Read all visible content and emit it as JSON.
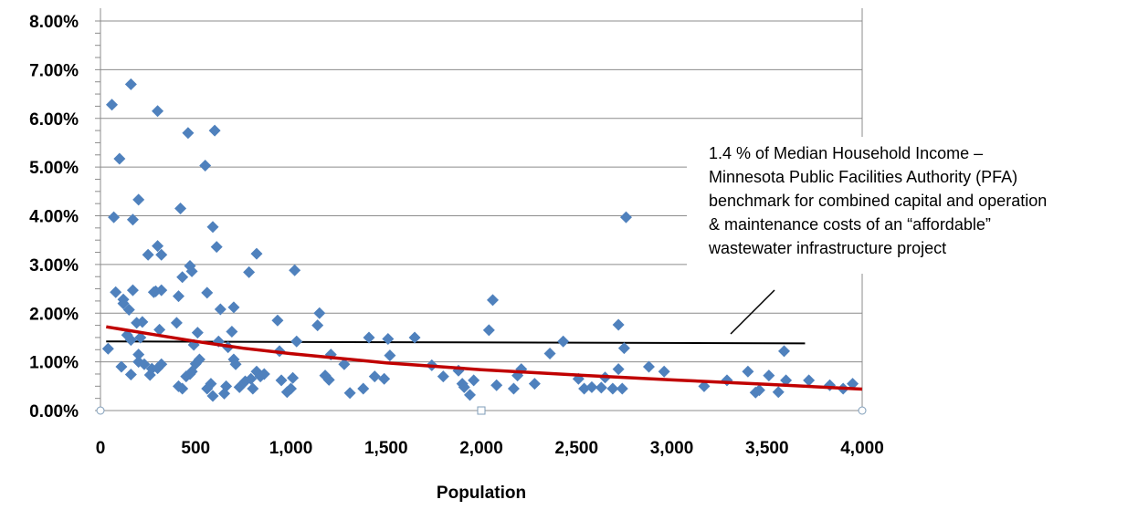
{
  "chart_data": {
    "type": "scatter",
    "xlabel": "Population",
    "ylabel": "",
    "xlim": [
      0,
      4000
    ],
    "ylim": [
      0,
      8
    ],
    "x_ticks": [
      0,
      500,
      1000,
      1500,
      2000,
      2500,
      3000,
      3500,
      4000
    ],
    "x_tick_labels": [
      "0",
      "500",
      "1,000",
      "1,500",
      "2,000",
      "2,500",
      "3,000",
      "3,500",
      "4,000"
    ],
    "y_ticks": [
      0,
      1,
      2,
      3,
      4,
      5,
      6,
      7,
      8
    ],
    "y_tick_labels": [
      "0.00%",
      "1.00%",
      "2.00%",
      "3.00%",
      "4.00%",
      "5.00%",
      "6.00%",
      "7.00%",
      "8.00%"
    ],
    "grid": "horizontal",
    "annotation": [
      "1.4 % of Median Household Income –",
      "Minnesota Public Facilities Authority (PFA)",
      "benchmark for combined capital and operation",
      "& maintenance costs of an “affordable”",
      "wastewater infrastructure project"
    ],
    "benchmark": {
      "x": [
        30,
        3700
      ],
      "y": [
        1.42,
        1.38
      ]
    },
    "trendline": {
      "x": [
        30,
        250,
        500,
        750,
        1000,
        1500,
        2000,
        2500,
        3000,
        3500,
        4000
      ],
      "y": [
        1.72,
        1.58,
        1.42,
        1.28,
        1.17,
        0.98,
        0.84,
        0.73,
        0.63,
        0.54,
        0.44
      ]
    },
    "points": [
      [
        60,
        6.28
      ],
      [
        160,
        6.7
      ],
      [
        300,
        6.15
      ],
      [
        100,
        5.17
      ],
      [
        70,
        3.97
      ],
      [
        170,
        3.92
      ],
      [
        200,
        4.33
      ],
      [
        250,
        3.2
      ],
      [
        300,
        3.38
      ],
      [
        320,
        3.2
      ],
      [
        460,
        5.7
      ],
      [
        600,
        5.75
      ],
      [
        550,
        5.03
      ],
      [
        420,
        4.15
      ],
      [
        590,
        3.77
      ],
      [
        610,
        3.36
      ],
      [
        470,
        2.97
      ],
      [
        430,
        2.74
      ],
      [
        480,
        2.86
      ],
      [
        410,
        2.35
      ],
      [
        560,
        2.42
      ],
      [
        630,
        2.08
      ],
      [
        700,
        2.12
      ],
      [
        780,
        2.84
      ],
      [
        820,
        3.22
      ],
      [
        1020,
        2.88
      ],
      [
        80,
        2.43
      ],
      [
        120,
        2.28
      ],
      [
        150,
        2.07
      ],
      [
        170,
        2.47
      ],
      [
        290,
        2.45
      ],
      [
        320,
        2.47
      ],
      [
        280,
        2.43
      ],
      [
        140,
        1.55
      ],
      [
        160,
        1.45
      ],
      [
        190,
        1.8
      ],
      [
        220,
        1.82
      ],
      [
        210,
        1.5
      ],
      [
        120,
        2.2
      ],
      [
        310,
        1.66
      ],
      [
        40,
        1.27
      ],
      [
        110,
        0.9
      ],
      [
        160,
        0.74
      ],
      [
        200,
        1.15
      ],
      [
        200,
        1.0
      ],
      [
        230,
        0.95
      ],
      [
        260,
        0.73
      ],
      [
        270,
        0.86
      ],
      [
        300,
        0.87
      ],
      [
        320,
        0.95
      ],
      [
        400,
        1.8
      ],
      [
        410,
        0.5
      ],
      [
        430,
        0.45
      ],
      [
        450,
        0.7
      ],
      [
        470,
        0.75
      ],
      [
        480,
        0.8
      ],
      [
        500,
        0.96
      ],
      [
        490,
        1.35
      ],
      [
        510,
        1.6
      ],
      [
        520,
        1.05
      ],
      [
        560,
        0.45
      ],
      [
        580,
        0.55
      ],
      [
        590,
        0.3
      ],
      [
        620,
        1.42
      ],
      [
        650,
        0.35
      ],
      [
        660,
        0.5
      ],
      [
        670,
        1.3
      ],
      [
        690,
        1.62
      ],
      [
        700,
        1.05
      ],
      [
        710,
        0.95
      ],
      [
        730,
        0.48
      ],
      [
        760,
        0.6
      ],
      [
        790,
        0.65
      ],
      [
        800,
        0.45
      ],
      [
        820,
        0.8
      ],
      [
        840,
        0.7
      ],
      [
        860,
        0.75
      ],
      [
        930,
        1.85
      ],
      [
        940,
        1.22
      ],
      [
        950,
        0.62
      ],
      [
        980,
        0.38
      ],
      [
        1000,
        0.45
      ],
      [
        1010,
        0.67
      ],
      [
        1030,
        1.42
      ],
      [
        1140,
        1.75
      ],
      [
        1150,
        2.0
      ],
      [
        1180,
        0.72
      ],
      [
        1200,
        0.63
      ],
      [
        1210,
        1.15
      ],
      [
        1280,
        0.95
      ],
      [
        1310,
        0.36
      ],
      [
        1380,
        0.45
      ],
      [
        1410,
        1.5
      ],
      [
        1440,
        0.7
      ],
      [
        1490,
        0.65
      ],
      [
        1510,
        1.47
      ],
      [
        1520,
        1.13
      ],
      [
        1650,
        1.5
      ],
      [
        1740,
        0.93
      ],
      [
        1800,
        0.7
      ],
      [
        1880,
        0.82
      ],
      [
        1900,
        0.55
      ],
      [
        1910,
        0.48
      ],
      [
        1940,
        0.32
      ],
      [
        1960,
        0.62
      ],
      [
        2040,
        1.65
      ],
      [
        2060,
        2.27
      ],
      [
        2080,
        0.52
      ],
      [
        2170,
        0.45
      ],
      [
        2190,
        0.72
      ],
      [
        2210,
        0.85
      ],
      [
        2280,
        0.55
      ],
      [
        2360,
        1.17
      ],
      [
        2430,
        1.42
      ],
      [
        2510,
        0.65
      ],
      [
        2540,
        0.45
      ],
      [
        2580,
        0.48
      ],
      [
        2630,
        0.47
      ],
      [
        2650,
        0.68
      ],
      [
        2690,
        0.45
      ],
      [
        2720,
        0.85
      ],
      [
        2720,
        1.76
      ],
      [
        2740,
        0.45
      ],
      [
        2750,
        1.28
      ],
      [
        2760,
        3.97
      ],
      [
        2880,
        0.9
      ],
      [
        2960,
        0.8
      ],
      [
        3170,
        0.5
      ],
      [
        3290,
        0.62
      ],
      [
        3400,
        0.8
      ],
      [
        3440,
        0.37
      ],
      [
        3460,
        0.42
      ],
      [
        3510,
        0.72
      ],
      [
        3560,
        0.38
      ],
      [
        3590,
        1.22
      ],
      [
        3600,
        0.62
      ],
      [
        3720,
        0.62
      ],
      [
        3830,
        0.52
      ],
      [
        3900,
        0.45
      ],
      [
        3950,
        0.55
      ]
    ],
    "colors": {
      "points": "#4f81bd",
      "trendline": "#c00000",
      "benchmark": "#000000",
      "grid": "#8c8c8c"
    }
  }
}
